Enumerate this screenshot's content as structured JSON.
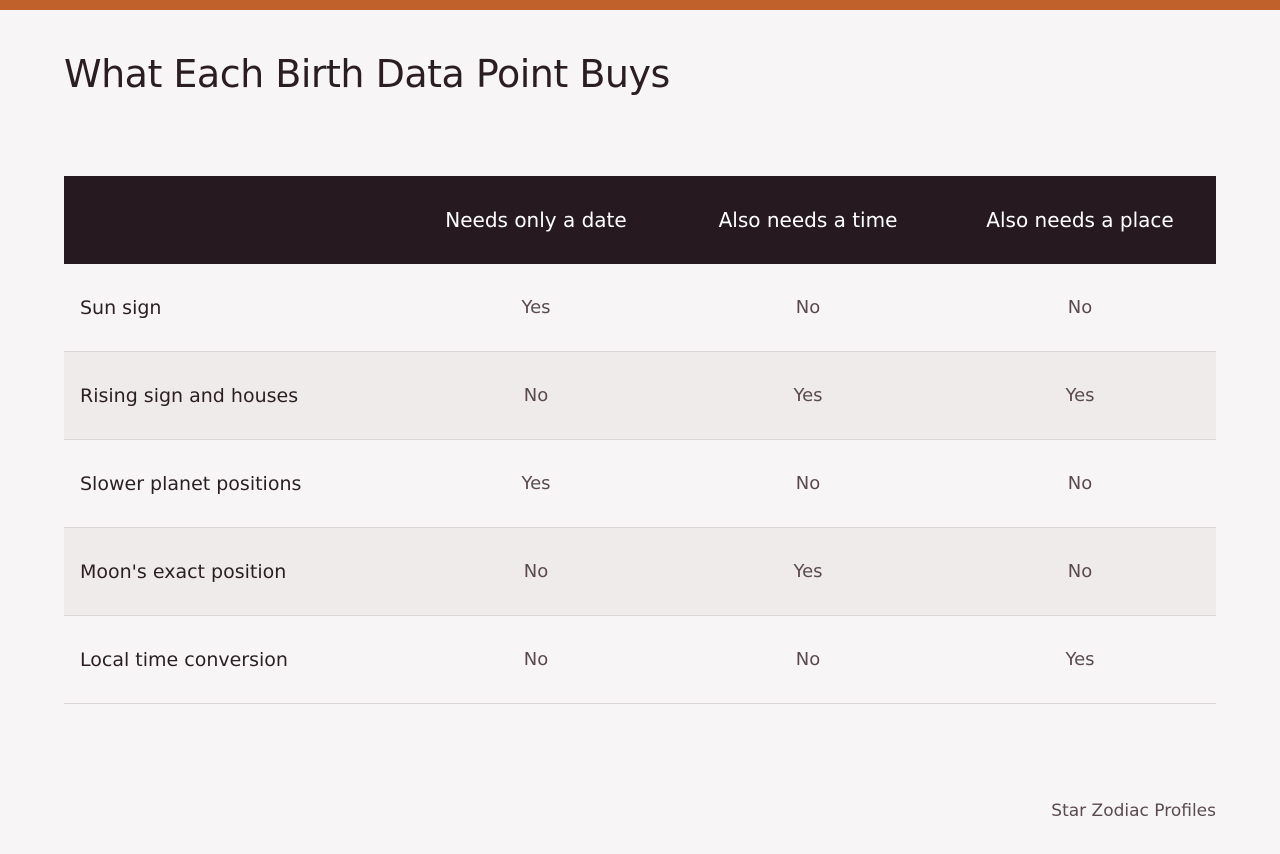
{
  "title": "What Each Birth Data Point Buys",
  "table": {
    "columns": [
      "Needs only a date",
      "Also needs a time",
      "Also needs a place"
    ],
    "rows": [
      {
        "label": "Sun sign",
        "cells": [
          "Yes",
          "No",
          "No"
        ]
      },
      {
        "label": "Rising sign and houses",
        "cells": [
          "No",
          "Yes",
          "Yes"
        ]
      },
      {
        "label": "Slower planet positions",
        "cells": [
          "Yes",
          "No",
          "No"
        ]
      },
      {
        "label": "Moon's exact position",
        "cells": [
          "No",
          "Yes",
          "No"
        ]
      },
      {
        "label": "Local time conversion",
        "cells": [
          "No",
          "No",
          "Yes"
        ]
      }
    ]
  },
  "footer": "Star Zodiac Profiles"
}
